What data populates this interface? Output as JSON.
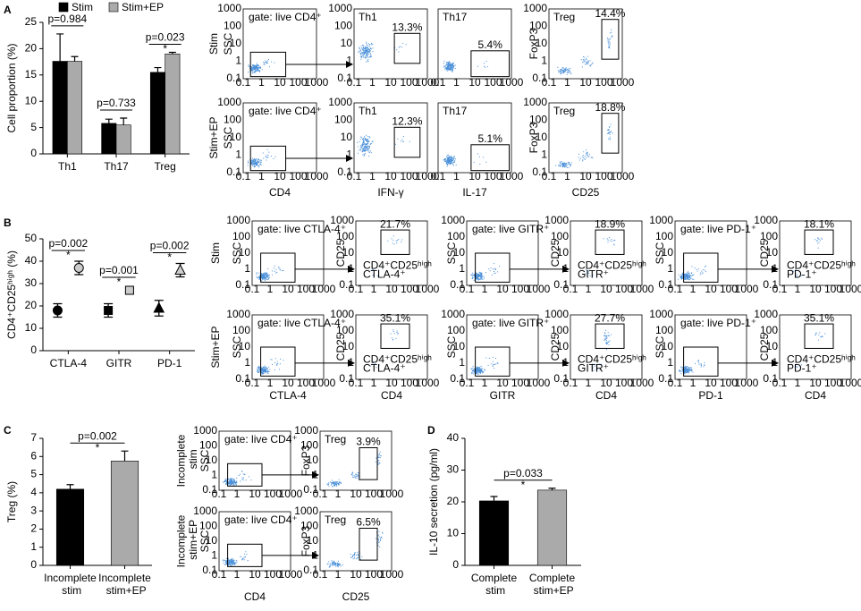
{
  "panel_labels": [
    "A",
    "B",
    "C",
    "D"
  ],
  "chart_data": [
    {
      "type": "bar",
      "y_label": "Cell proportion (%)",
      "categories": [
        "Th1",
        "Th17",
        "Treg"
      ],
      "series": [
        {
          "name": "Stim",
          "color": "#000000",
          "values": [
            17.6,
            5.8,
            15.5
          ],
          "errors": [
            5.2,
            0.8,
            0.9
          ]
        },
        {
          "name": "Stim+EP",
          "color": "#aaaaaa",
          "values": [
            17.6,
            5.5,
            19.0
          ],
          "errors": [
            0.9,
            1.3,
            0.3
          ]
        }
      ],
      "legend": "top",
      "ylim": [
        0,
        25
      ],
      "yticks": [
        0,
        5,
        10,
        15,
        20,
        25
      ],
      "annotations": [
        {
          "text": "p=0.984"
        },
        {
          "text": "p=0.733"
        },
        {
          "text": "p=0.023",
          "mark": "*"
        }
      ]
    },
    {
      "type": "point",
      "y_label": "CD4⁺CD25ʰⁱᵍʰ (%)",
      "categories": [
        "CTLA-4",
        "GITR",
        "PD-1"
      ],
      "markers": [
        "circle",
        "square",
        "triangle"
      ],
      "series": [
        {
          "color": "#000000",
          "values": [
            18,
            18,
            19
          ],
          "errors": [
            3,
            3,
            3.5
          ]
        },
        {
          "color": "#cccccc",
          "values": [
            37,
            27,
            36
          ],
          "errors": [
            3,
            1,
            3
          ]
        }
      ],
      "ylim": [
        0,
        50
      ],
      "yticks": [
        0,
        10,
        20,
        30,
        40,
        50
      ],
      "annotations": [
        {
          "text": "p=0.002",
          "mark": "*"
        },
        {
          "text": "p=0.001",
          "mark": "*"
        },
        {
          "text": "p=0.002",
          "mark": "*"
        }
      ]
    },
    {
      "type": "bar",
      "y_label": "Treg (%)",
      "categories": [
        "Incomplete stim",
        "Incomplete stim+EP"
      ],
      "values": [
        4.2,
        5.75
      ],
      "errors": [
        0.25,
        0.55
      ],
      "colors": [
        "#000000",
        "#aaaaaa"
      ],
      "ylim": [
        0,
        7
      ],
      "yticks": [
        0,
        1,
        2,
        3,
        4,
        5,
        6,
        7
      ],
      "annotations": [
        {
          "text": "p=0.002",
          "mark": "*"
        }
      ]
    },
    {
      "type": "bar",
      "y_label": "IL-10 secretion (pg/ml)",
      "categories": [
        "Complete stim",
        "Complete stim+EP"
      ],
      "values": [
        20.3,
        23.7
      ],
      "errors": [
        1.4,
        0.6
      ],
      "colors": [
        "#000000",
        "#aaaaaa"
      ],
      "ylim": [
        0,
        40
      ],
      "yticks": [
        0,
        10,
        20,
        30,
        40
      ],
      "annotations": [
        {
          "text": "p=0.033",
          "mark": "*"
        }
      ]
    }
  ],
  "flow_ticks": [
    "0.1",
    "1",
    "10",
    "100",
    "1000"
  ],
  "flow_a": {
    "rows": [
      "Stim",
      "Stim+EP"
    ],
    "gate": "gate: live CD4⁺",
    "populations": [
      "Th1",
      "Th17",
      "Treg"
    ],
    "percentages": [
      [
        "13.3%",
        "5.4%",
        "14.4%"
      ],
      [
        "12.3%",
        "5.1%",
        "18.8%"
      ]
    ],
    "x_labels": [
      "CD4",
      "IFN-γ",
      "IL-17",
      "CD25"
    ],
    "y_labels": [
      "SSC",
      "FoxP3"
    ]
  },
  "flow_b": {
    "rows": [
      "Stim",
      "Stim+EP"
    ],
    "y_labels": [
      "SSC",
      "CD25"
    ],
    "groups": [
      {
        "gate": "gate: live CTLA-4⁺",
        "marker_label": [
          "CD4⁺CD25ʰⁱᵍʰ",
          "CTLA-4⁺"
        ],
        "percentages": [
          "21.7%",
          "35.1%"
        ],
        "x_labels": [
          "CTLA-4",
          "CD4"
        ]
      },
      {
        "gate": "gate: live GITR⁺",
        "marker_label": [
          "CD4⁺CD25ʰⁱᵍʰ",
          "GITR⁺"
        ],
        "percentages": [
          "18.9%",
          "27.7%"
        ],
        "x_labels": [
          "GITR",
          "CD4"
        ]
      },
      {
        "gate": "gate: live PD-1⁺",
        "marker_label": [
          "CD4⁺CD25ʰⁱᵍʰ",
          "PD-1⁺"
        ],
        "percentages": [
          "18.1%",
          "35.1%"
        ],
        "x_labels": [
          "PD-1",
          "CD4"
        ]
      }
    ]
  },
  "flow_c": {
    "rows": [
      "Incomplete stim",
      "Incomplete stim+EP"
    ],
    "gate": "gate: live CD4⁺",
    "population": "Treg",
    "percentages": [
      "3.9%",
      "6.5%"
    ],
    "x_labels": [
      "CD4",
      "CD25"
    ],
    "y_labels": [
      "SSC",
      "FoxP3"
    ]
  }
}
